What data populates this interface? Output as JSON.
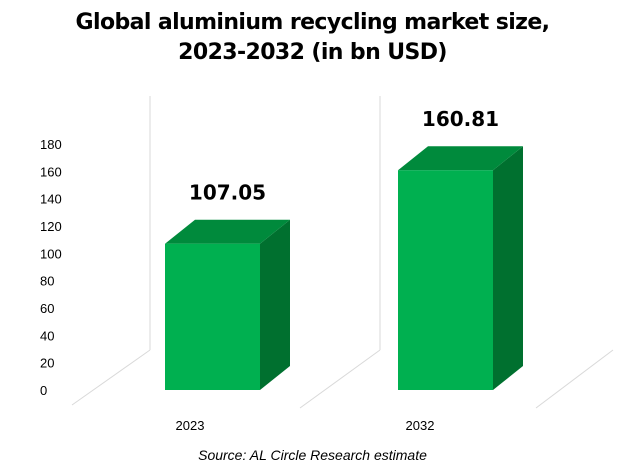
{
  "chart_data": {
    "type": "bar",
    "title_line1": "Global aluminium recycling market size,",
    "title_line2": "2023-2032 (in bn USD)",
    "categories": [
      "2023",
      "2032"
    ],
    "values": [
      107.05,
      160.81
    ],
    "value_labels": [
      "107.05",
      "160.81"
    ],
    "yticks": [
      "0",
      "20",
      "40",
      "60",
      "80",
      "100",
      "120",
      "140",
      "160",
      "180"
    ],
    "ylim": [
      0,
      180
    ],
    "xlabel": "",
    "ylabel": "",
    "grid": false,
    "legend": "none",
    "style": "3d-bars",
    "colors": {
      "bar_front": "#00b050",
      "bar_side": "#00702f",
      "bar_top": "#008a3c",
      "wall": "#d9d9d9"
    }
  },
  "source": "Source: AL Circle Research estimate"
}
